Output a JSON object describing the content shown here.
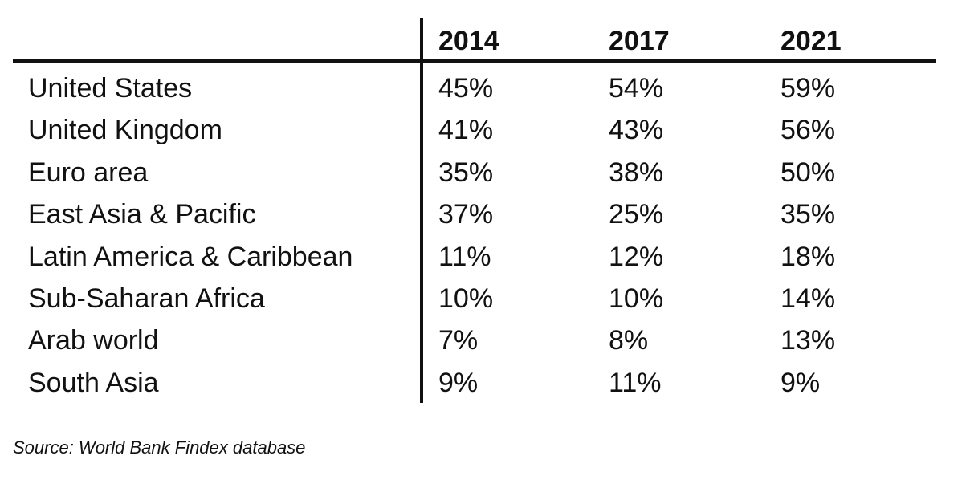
{
  "table": {
    "columns": [
      "",
      "2014",
      "2017",
      "2021"
    ],
    "rows": [
      {
        "region": "United States",
        "values": [
          "45%",
          "54%",
          "59%"
        ]
      },
      {
        "region": "United Kingdom",
        "values": [
          "41%",
          "43%",
          "56%"
        ]
      },
      {
        "region": "Euro area",
        "values": [
          "35%",
          "38%",
          "50%"
        ]
      },
      {
        "region": "East Asia & Pacific",
        "values": [
          "37%",
          "25%",
          "35%"
        ]
      },
      {
        "region": "Latin America & Caribbean",
        "values": [
          "11%",
          "12%",
          "18%"
        ]
      },
      {
        "region": "Sub-Saharan Africa",
        "values": [
          "10%",
          "10%",
          "14%"
        ]
      },
      {
        "region": "Arab world",
        "values": [
          "7%",
          "8%",
          "13%"
        ]
      },
      {
        "region": "South Asia",
        "values": [
          "9%",
          "11%",
          "9%"
        ]
      }
    ]
  },
  "source": "Source: World Bank Findex database"
}
